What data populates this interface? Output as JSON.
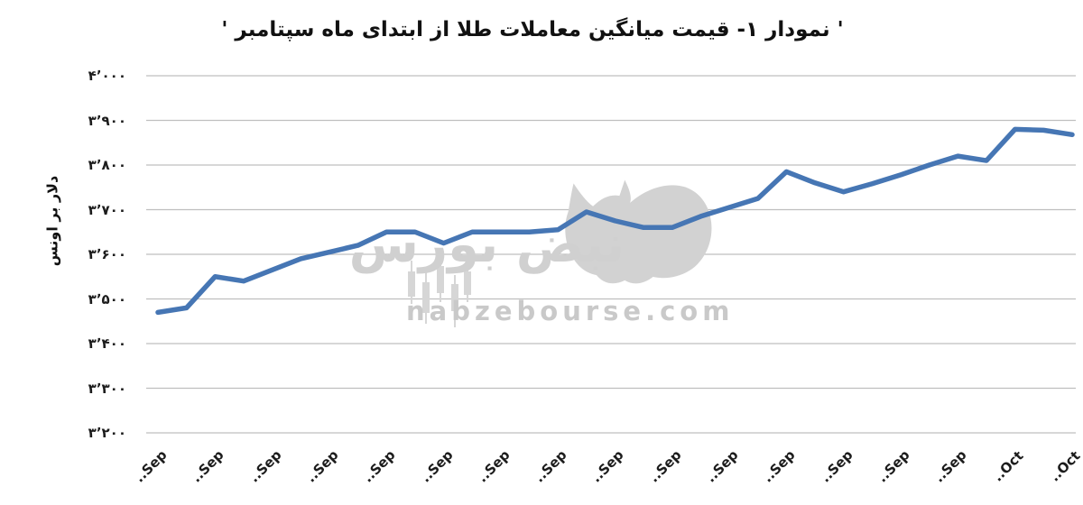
{
  "title": "'  نمودار ۱- قیمت میانگین معاملات طلا از ابتدای ماه سپتامبر  '",
  "y_axis": {
    "label": "دلار بر اونس",
    "tick_labels": [
      "۴٬۰۰۰",
      "۳٬۹۰۰",
      "۳٬۸۰۰",
      "۳٬۷۰۰",
      "۳٬۶۰۰",
      "۳٬۵۰۰",
      "۳٬۴۰۰",
      "۳٬۳۰۰",
      "۳٬۲۰۰"
    ],
    "tick_values": [
      4000,
      3900,
      3800,
      3700,
      3600,
      3500,
      3400,
      3300,
      3200
    ]
  },
  "x_axis": {
    "labels": [
      "..Sep",
      "..Sep",
      "..Sep",
      "..Sep",
      "..Sep",
      "..Sep",
      "..Sep",
      "..Sep",
      "..Sep",
      "..Sep",
      "..Sep",
      "..Sep",
      "..Sep",
      "..Sep",
      "..Sep",
      "..Oct",
      "..Oct"
    ]
  },
  "watermark": {
    "brand": "نبض بورس",
    "domain": "nabzebourse.com"
  },
  "colors": {
    "line": "#4676b4",
    "grid": "#bfbfbf",
    "text": "#1c1c1c",
    "watermark": "#d0d0d0"
  },
  "chart_data": {
    "type": "line",
    "title": "نمودار ۱- قیمت میانگین معاملات طلا از ابتدای ماه سپتامبر",
    "ylabel": "دلار بر اونس",
    "ylim": [
      3200,
      4000
    ],
    "y_tick_step": 100,
    "grid": true,
    "legend": false,
    "x_tick_labels": [
      "Sep",
      "Sep",
      "Sep",
      "Sep",
      "Sep",
      "Sep",
      "Sep",
      "Sep",
      "Sep",
      "Sep",
      "Sep",
      "Sep",
      "Sep",
      "Sep",
      "Sep",
      "Oct",
      "Oct"
    ],
    "x_tick_every_n_points": 2,
    "series": [
      {
        "name": "قیمت میانگین معاملات طلا",
        "color": "#4676b4",
        "values": [
          3470,
          3480,
          3550,
          3540,
          3565,
          3590,
          3605,
          3620,
          3650,
          3650,
          3625,
          3650,
          3650,
          3650,
          3655,
          3695,
          3675,
          3660,
          3660,
          3685,
          3705,
          3725,
          3785,
          3760,
          3740,
          3758,
          3778,
          3800,
          3820,
          3810,
          3880,
          3878,
          3868
        ]
      }
    ]
  }
}
